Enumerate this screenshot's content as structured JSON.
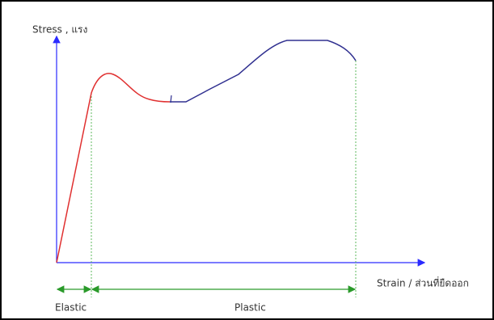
{
  "y_axis_label": "Stress , แรง",
  "x_axis_label": "Strain / ส่วนที่ยืดออก",
  "regions": [
    "Elastic",
    "Plastic"
  ]
}
